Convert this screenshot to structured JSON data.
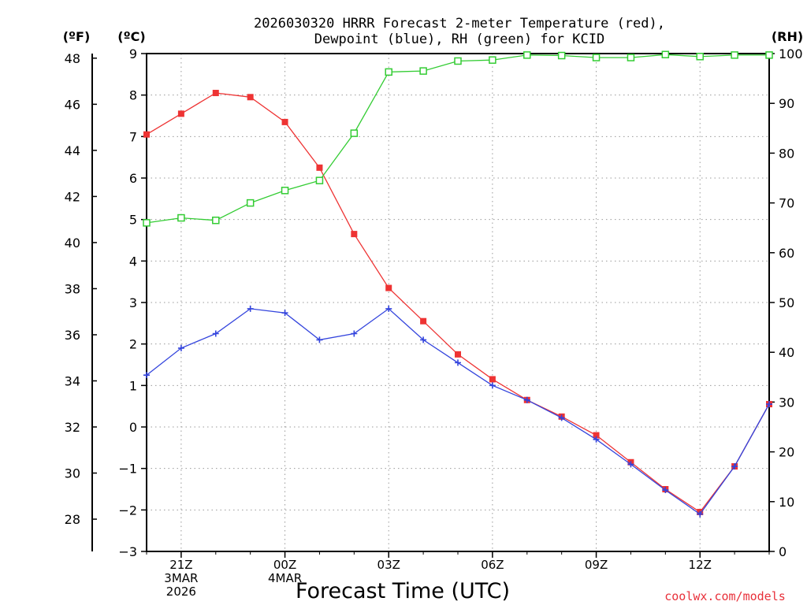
{
  "chart_data": {
    "type": "line",
    "title_line1": "2026030320 HRRR Forecast 2-meter Temperature (red),",
    "title_line2": "Dewpoint (blue), RH (green) for KCID",
    "xlabel": "Forecast Time (UTC)",
    "unit_f": "(ºF)",
    "unit_c": "(ºC)",
    "unit_rh": "(RH)",
    "credit": "coolwx.com/models",
    "x_ticks": [
      {
        "hour": 1,
        "lines": [
          "21Z",
          "3MAR",
          "2026"
        ]
      },
      {
        "hour": 4,
        "lines": [
          "00Z",
          "4MAR"
        ]
      },
      {
        "hour": 7,
        "lines": [
          "03Z"
        ]
      },
      {
        "hour": 10,
        "lines": [
          "06Z"
        ]
      },
      {
        "hour": 13,
        "lines": [
          "09Z"
        ]
      },
      {
        "hour": 16,
        "lines": [
          "12Z"
        ]
      }
    ],
    "xlim": [
      0,
      18
    ],
    "ylim_c": [
      -3,
      9
    ],
    "ylim_rh": [
      0,
      100
    ],
    "y_ticks_c": [
      -3,
      -2,
      -1,
      0,
      1,
      2,
      3,
      4,
      5,
      6,
      7,
      8,
      9
    ],
    "y_ticks_f": [
      28,
      30,
      32,
      34,
      36,
      38,
      40,
      42,
      44,
      46,
      48
    ],
    "y_ticks_rh": [
      0,
      10,
      20,
      30,
      40,
      50,
      60,
      70,
      80,
      90,
      100
    ],
    "x_hours": [
      0,
      1,
      2,
      3,
      4,
      5,
      6,
      7,
      8,
      9,
      10,
      11,
      12,
      13,
      14,
      15,
      16,
      17,
      18
    ],
    "series": [
      {
        "name": "Temperature",
        "axis": "celsius",
        "color": "#ee3333",
        "marker": "filled-square",
        "values": [
          7.05,
          7.55,
          8.05,
          7.95,
          7.35,
          6.25,
          4.65,
          3.35,
          2.55,
          1.75,
          1.15,
          0.65,
          0.25,
          -0.2,
          -0.85,
          -1.5,
          -2.05,
          -0.95,
          0.55
        ]
      },
      {
        "name": "Dewpoint",
        "axis": "celsius",
        "color": "#3344dd",
        "marker": "plus",
        "values": [
          1.25,
          1.9,
          2.25,
          2.85,
          2.75,
          2.1,
          2.25,
          2.85,
          2.1,
          1.55,
          1.0,
          0.65,
          0.22,
          -0.3,
          -0.9,
          -1.52,
          -2.1,
          -0.95,
          0.55
        ]
      },
      {
        "name": "RH",
        "axis": "rh",
        "color": "#33cc33",
        "marker": "open-square",
        "values": [
          66,
          67,
          66.5,
          70,
          72.5,
          74.5,
          84,
          96.3,
          96.5,
          98.5,
          98.7,
          99.7,
          99.6,
          99.2,
          99.2,
          99.8,
          99.4,
          99.7,
          99.7
        ]
      }
    ]
  },
  "colors": {
    "temperature": "#ee3333",
    "dewpoint": "#3344dd",
    "rh": "#33cc33",
    "grid": "#999999",
    "credit": "#e8303a"
  }
}
